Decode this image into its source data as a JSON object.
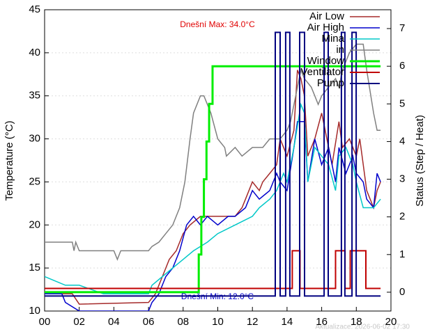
{
  "chart_data": {
    "type": "line",
    "annotations": [
      "Dnešní Max: 34.0°C",
      "Dnešní Min: 12.0°C",
      "Aktualizace: 2026-06-02 17:30"
    ],
    "ylabel": "Temperature (°C)",
    "y2label": "Status (Step / Heat)",
    "xlim": [
      0,
      20
    ],
    "xticks": [
      {
        "value": 0,
        "label": "00"
      },
      {
        "value": 2,
        "label": "02"
      },
      {
        "value": 4,
        "label": "04"
      },
      {
        "value": 6,
        "label": "06"
      },
      {
        "value": 8,
        "label": "08"
      },
      {
        "value": 10,
        "label": "10"
      },
      {
        "value": 12,
        "label": "12"
      },
      {
        "value": 14,
        "label": "14"
      },
      {
        "value": 16,
        "label": "16"
      },
      {
        "value": 18,
        "label": "18"
      },
      {
        "value": 20,
        "label": "20"
      }
    ],
    "ylim": [
      10,
      45
    ],
    "yticks": [
      10,
      15,
      20,
      25,
      30,
      35,
      40,
      45
    ],
    "y2lim": [
      -0.5,
      7.5
    ],
    "y2ticks": [
      0,
      1,
      2,
      3,
      4,
      5,
      6,
      7
    ],
    "grid": true,
    "legend": "top-right",
    "series": [
      {
        "name": "Air Low",
        "color": "#a52a2a",
        "x": [
          0,
          1.6,
          2,
          6,
          6.4,
          6.8,
          7.2,
          7.6,
          8,
          8.4,
          9,
          11,
          11.4,
          11.6,
          12,
          12.4,
          12.6,
          13,
          13.4,
          13.6,
          14,
          14.4,
          14.6,
          14.8,
          15,
          15.2,
          15.6,
          16,
          16.2,
          16.6,
          17,
          17.2,
          17.6,
          18,
          18.2,
          18.6,
          19,
          19.2,
          19.4
        ],
        "values": [
          12,
          12,
          10.8,
          11,
          12,
          14,
          16,
          17,
          19,
          20,
          21,
          21,
          22,
          23,
          25,
          24,
          25,
          26,
          27,
          30,
          28,
          31,
          38,
          37,
          35,
          28,
          30,
          33,
          31,
          27,
          32,
          29,
          30,
          28,
          30,
          24,
          22,
          24,
          25
        ]
      },
      {
        "name": "Air High",
        "color": "#0000cc",
        "x": [
          0,
          1,
          1.2,
          2,
          6,
          6.2,
          6.6,
          7,
          7.4,
          7.8,
          8.2,
          8.6,
          9,
          9.4,
          10,
          10.6,
          11,
          11.6,
          12,
          12.4,
          13,
          13.4,
          13.6,
          14,
          14.4,
          14.6,
          15,
          15.2,
          15.6,
          16,
          16.4,
          16.8,
          17,
          17.4,
          17.8,
          18,
          18.4,
          18.6,
          19,
          19.2,
          19.4
        ],
        "values": [
          12,
          12,
          11,
          10,
          10,
          11,
          12,
          14,
          15,
          17,
          20,
          21,
          20,
          21,
          20,
          21,
          21,
          22,
          24,
          23,
          24,
          26,
          25,
          24,
          29,
          32,
          32,
          25,
          30,
          27,
          29,
          25,
          29,
          26,
          28,
          26,
          25,
          23,
          22,
          26,
          25
        ]
      },
      {
        "name": "Mina",
        "color": "#00c8c8",
        "x": [
          0,
          1.2,
          2,
          3.4,
          6,
          6.2,
          6.8,
          7.4,
          8,
          8.6,
          9.4,
          10,
          11,
          12,
          12.4,
          13,
          13.4,
          13.8,
          14,
          14.4,
          14.8,
          15,
          15.2,
          15.6,
          16,
          16.4,
          16.8,
          17,
          17.4,
          17.8,
          18,
          18.4,
          19,
          19.4
        ],
        "values": [
          14,
          13,
          13,
          12,
          12,
          13,
          14,
          15,
          16,
          17,
          18,
          19,
          20,
          21,
          22,
          23,
          24,
          26,
          25,
          29,
          34,
          33,
          25,
          29,
          28,
          27,
          24,
          28,
          29,
          27,
          25,
          22,
          22,
          23
        ]
      },
      {
        "name": "in",
        "color": "#808080",
        "x": [
          0,
          1.6,
          1.7,
          1.8,
          2,
          4,
          4.2,
          4.4,
          6,
          6.2,
          6.6,
          7,
          7.4,
          7.8,
          8,
          8.1,
          8.4,
          8.6,
          9,
          9.2,
          9.6,
          10,
          10.4,
          10.5,
          11,
          11.4,
          12,
          12.6,
          13,
          13.6,
          14,
          14.2,
          14.6,
          14.8,
          15,
          15.4,
          15.6,
          15.8,
          16,
          16.4,
          16.8,
          17,
          17.2,
          17.6,
          18,
          18.4,
          18.6,
          19,
          19.2,
          19.4
        ],
        "values": [
          18,
          18,
          17,
          18,
          17,
          17,
          16,
          17,
          17,
          17.5,
          18,
          19,
          20,
          22,
          24,
          25,
          30,
          33,
          35,
          35,
          33,
          30,
          29,
          28,
          29,
          28,
          29,
          29,
          30,
          30,
          31,
          32,
          36,
          38,
          37,
          36,
          35,
          34,
          35,
          36,
          37,
          36,
          38,
          40,
          41,
          41,
          38,
          33,
          31,
          31
        ]
      },
      {
        "name": "Window",
        "color": "#00ee00",
        "axis": "y2",
        "x": [
          0,
          8.9,
          8.9,
          9.05,
          9.05,
          9.2,
          9.2,
          9.35,
          9.35,
          9.5,
          9.5,
          9.7,
          9.7,
          19.4
        ],
        "values": [
          0,
          0,
          1,
          1,
          2,
          2,
          3,
          3,
          4,
          4,
          5,
          5,
          6,
          6
        ]
      },
      {
        "name": "Ventilator",
        "color": "#c00000",
        "axis": "y2",
        "x": [
          0,
          14.3,
          14.3,
          14.75,
          14.75,
          16.8,
          16.8,
          17.35,
          17.35,
          17.65,
          17.65,
          18.55,
          18.55,
          19.4
        ],
        "values": [
          0.1,
          0.1,
          1.1,
          1.1,
          0.1,
          0.1,
          1.1,
          1.1,
          0.1,
          0.1,
          1.1,
          1.1,
          0.1,
          0.1
        ]
      },
      {
        "name": "Pump",
        "color": "#000080",
        "axis": "y2",
        "x": [
          0,
          13.32,
          13.32,
          13.6,
          13.6,
          13.92,
          13.92,
          14.16,
          14.16,
          14.73,
          14.73,
          15.01,
          15.01,
          16.14,
          16.14,
          16.38,
          16.38,
          17.14,
          17.14,
          17.34,
          17.34,
          17.75,
          17.75,
          17.99,
          17.99,
          19.4
        ],
        "values": [
          -0.1,
          -0.1,
          6.9,
          6.9,
          -0.1,
          -0.1,
          6.9,
          6.9,
          -0.1,
          -0.1,
          6.9,
          6.9,
          -0.1,
          -0.1,
          6.9,
          6.9,
          -0.1,
          -0.1,
          6.9,
          6.9,
          -0.1,
          -0.1,
          6.9,
          6.9,
          -0.1,
          -0.1
        ]
      }
    ]
  }
}
